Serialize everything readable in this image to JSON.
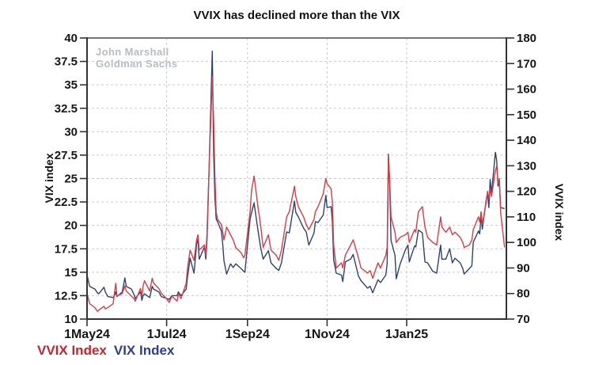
{
  "chart_data": {
    "type": "line",
    "title": "VVIX has declined more than the VIX",
    "watermark": {
      "line1": "John Marshall",
      "line2": "Goldman Sachs"
    },
    "grid": true,
    "left_axis": {
      "label": "VIX index",
      "min": 10,
      "max": 40,
      "tick_step": 2.5,
      "ticks": [
        10,
        12.5,
        15,
        17.5,
        20,
        22.5,
        25,
        27.5,
        30,
        32.5,
        35,
        37.5,
        40
      ]
    },
    "right_axis": {
      "label": "VVIX index",
      "min": 70,
      "max": 180,
      "tick_step": 10,
      "ticks": [
        70,
        80,
        90,
        100,
        110,
        120,
        130,
        140,
        150,
        160,
        170,
        180
      ]
    },
    "x_axis": {
      "tick_labels": [
        "1May24",
        "1Jul24",
        "1Sep24",
        "1Nov24",
        "1Jan25"
      ],
      "tick_dates": [
        "2024-05-01",
        "2024-07-01",
        "2024-09-01",
        "2024-11-01",
        "2025-01-01"
      ],
      "range_start": "2024-05-01",
      "range_end": "2025-03-17"
    },
    "legend": [
      {
        "label": "VVIX Index",
        "color": "#c4242e",
        "axis": "right"
      },
      {
        "label": "VIX Index",
        "color": "#2e3f8c",
        "axis": "left"
      }
    ],
    "colors": {
      "vix_line": "#2e4270",
      "vvix_line": "#d13f48",
      "grid": "#c9c9c9",
      "axis": "#333333",
      "axis_top": "#747474",
      "tick_label": "#161616"
    },
    "columns": [
      "date",
      "vix_left_axis",
      "vvix_right_axis"
    ],
    "points": [
      [
        "2024-05-01",
        14.7,
        80
      ],
      [
        "2024-05-03",
        13.5,
        76
      ],
      [
        "2024-05-07",
        13.2,
        74.5
      ],
      [
        "2024-05-09",
        12.8,
        73
      ],
      [
        "2024-05-10",
        12.7,
        73.5
      ],
      [
        "2024-05-14",
        13.4,
        75
      ],
      [
        "2024-05-15",
        12.9,
        74
      ],
      [
        "2024-05-17",
        12.4,
        74.5
      ],
      [
        "2024-05-21",
        12.3,
        76
      ],
      [
        "2024-05-22",
        12.5,
        80
      ],
      [
        "2024-05-23",
        12.9,
        84
      ],
      [
        "2024-05-24",
        12.4,
        79
      ],
      [
        "2024-05-28",
        12.9,
        80
      ],
      [
        "2024-05-30",
        14.4,
        83
      ],
      [
        "2024-05-31",
        13.5,
        81
      ],
      [
        "2024-06-04",
        13.2,
        79
      ],
      [
        "2024-06-06",
        12.6,
        78
      ],
      [
        "2024-06-07",
        12.2,
        77
      ],
      [
        "2024-06-11",
        12.9,
        82
      ],
      [
        "2024-06-12",
        12.0,
        79
      ],
      [
        "2024-06-13",
        12.5,
        83
      ],
      [
        "2024-06-14",
        12.7,
        85
      ],
      [
        "2024-06-18",
        12.3,
        81
      ],
      [
        "2024-06-20",
        13.5,
        86
      ],
      [
        "2024-06-21",
        13.2,
        84
      ],
      [
        "2024-06-25",
        12.9,
        82
      ],
      [
        "2024-06-27",
        12.4,
        80
      ],
      [
        "2024-07-01",
        12.2,
        78
      ],
      [
        "2024-07-03",
        12.1,
        76.5
      ],
      [
        "2024-07-05",
        12.5,
        79
      ],
      [
        "2024-07-09",
        12.5,
        77
      ],
      [
        "2024-07-10",
        12.9,
        80
      ],
      [
        "2024-07-12",
        12.5,
        78
      ],
      [
        "2024-07-16",
        13.2,
        84
      ],
      [
        "2024-07-17",
        14.5,
        90
      ],
      [
        "2024-07-19",
        16.5,
        97
      ],
      [
        "2024-07-22",
        14.9,
        93
      ],
      [
        "2024-07-24",
        18.0,
        101
      ],
      [
        "2024-07-25",
        18.5,
        103
      ],
      [
        "2024-07-26",
        16.4,
        97
      ],
      [
        "2024-07-30",
        17.7,
        99
      ],
      [
        "2024-07-31",
        16.4,
        95
      ],
      [
        "2024-08-01",
        18.6,
        104
      ],
      [
        "2024-08-02",
        23.4,
        121
      ],
      [
        "2024-08-05",
        38.6,
        165
      ],
      [
        "2024-08-06",
        27.7,
        148
      ],
      [
        "2024-08-07",
        23.0,
        126
      ],
      [
        "2024-08-08",
        20.7,
        112
      ],
      [
        "2024-08-09",
        20.4,
        109
      ],
      [
        "2024-08-12",
        19.4,
        107
      ],
      [
        "2024-08-13",
        18.0,
        104
      ],
      [
        "2024-08-14",
        16.2,
        101
      ],
      [
        "2024-08-16",
        14.8,
        106
      ],
      [
        "2024-08-19",
        15.9,
        103
      ],
      [
        "2024-08-21",
        15.5,
        101
      ],
      [
        "2024-08-23",
        15.9,
        98
      ],
      [
        "2024-08-27",
        15.4,
        96
      ],
      [
        "2024-08-29",
        15.1,
        94
      ],
      [
        "2024-08-30",
        15.0,
        95
      ],
      [
        "2024-09-03",
        20.7,
        112
      ],
      [
        "2024-09-04",
        21.3,
        120
      ],
      [
        "2024-09-06",
        22.4,
        126
      ],
      [
        "2024-09-09",
        19.5,
        114
      ],
      [
        "2024-09-11",
        17.7,
        107
      ],
      [
        "2024-09-13",
        16.4,
        98
      ],
      [
        "2024-09-17",
        17.3,
        103
      ],
      [
        "2024-09-19",
        16.0,
        97
      ],
      [
        "2024-09-23",
        15.4,
        95
      ],
      [
        "2024-09-25",
        15.2,
        93
      ],
      [
        "2024-09-27",
        16.0,
        97
      ],
      [
        "2024-10-01",
        19.3,
        110
      ],
      [
        "2024-10-03",
        19.2,
        112
      ],
      [
        "2024-10-07",
        22.6,
        122
      ],
      [
        "2024-10-08",
        21.4,
        118
      ],
      [
        "2024-10-10",
        20.9,
        114
      ],
      [
        "2024-10-14",
        19.7,
        110
      ],
      [
        "2024-10-16",
        19.3,
        107
      ],
      [
        "2024-10-18",
        17.9,
        105
      ],
      [
        "2024-10-22",
        19.2,
        109
      ],
      [
        "2024-10-23",
        20.4,
        112
      ],
      [
        "2024-10-25",
        20.3,
        114
      ],
      [
        "2024-10-29",
        21.1,
        119
      ],
      [
        "2024-10-31",
        23.2,
        125
      ],
      [
        "2024-11-01",
        21.9,
        123
      ],
      [
        "2024-11-04",
        22.0,
        121
      ],
      [
        "2024-11-05",
        20.5,
        116
      ],
      [
        "2024-11-06",
        16.3,
        99
      ],
      [
        "2024-11-08",
        14.9,
        90
      ],
      [
        "2024-11-12",
        14.7,
        92
      ],
      [
        "2024-11-13",
        14.0,
        90
      ],
      [
        "2024-11-15",
        16.1,
        95
      ],
      [
        "2024-11-19",
        16.4,
        99
      ],
      [
        "2024-11-21",
        16.9,
        101
      ],
      [
        "2024-11-25",
        14.6,
        94
      ],
      [
        "2024-11-27",
        14.1,
        90
      ],
      [
        "2024-12-02",
        13.3,
        88
      ],
      [
        "2024-12-04",
        13.5,
        89
      ],
      [
        "2024-12-06",
        12.8,
        86
      ],
      [
        "2024-12-10",
        14.2,
        92
      ],
      [
        "2024-12-12",
        13.9,
        90
      ],
      [
        "2024-12-16",
        14.7,
        95
      ],
      [
        "2024-12-17",
        15.9,
        98
      ],
      [
        "2024-12-18",
        27.6,
        134
      ],
      [
        "2024-12-19",
        24.1,
        124
      ],
      [
        "2024-12-20",
        18.4,
        110
      ],
      [
        "2024-12-23",
        16.8,
        104
      ],
      [
        "2024-12-24",
        14.3,
        100
      ],
      [
        "2024-12-27",
        15.9,
        102
      ],
      [
        "2024-12-31",
        17.4,
        103
      ],
      [
        "2025-01-02",
        17.9,
        104
      ],
      [
        "2025-01-03",
        16.1,
        100
      ],
      [
        "2025-01-07",
        17.8,
        105
      ],
      [
        "2025-01-08",
        17.7,
        104
      ],
      [
        "2025-01-10",
        19.5,
        112
      ],
      [
        "2025-01-13",
        19.2,
        114
      ],
      [
        "2025-01-15",
        16.1,
        106
      ],
      [
        "2025-01-17",
        16.0,
        102
      ],
      [
        "2025-01-21",
        15.1,
        100
      ],
      [
        "2025-01-24",
        14.9,
        99
      ],
      [
        "2025-01-27",
        17.9,
        110
      ],
      [
        "2025-01-28",
        16.4,
        106
      ],
      [
        "2025-01-31",
        16.4,
        104
      ],
      [
        "2025-02-03",
        17.5,
        106
      ],
      [
        "2025-02-05",
        16.0,
        103
      ],
      [
        "2025-02-07",
        16.5,
        104
      ],
      [
        "2025-02-11",
        16.0,
        102
      ],
      [
        "2025-02-13",
        15.4,
        100
      ],
      [
        "2025-02-14",
        14.8,
        98
      ],
      [
        "2025-02-18",
        15.4,
        99
      ],
      [
        "2025-02-20",
        15.7,
        101
      ],
      [
        "2025-02-21",
        18.2,
        105
      ],
      [
        "2025-02-25",
        19.4,
        110
      ],
      [
        "2025-02-26",
        19.1,
        108
      ],
      [
        "2025-02-27",
        21.1,
        112
      ],
      [
        "2025-02-28",
        19.6,
        107
      ],
      [
        "2025-03-03",
        22.8,
        116
      ],
      [
        "2025-03-04",
        23.5,
        120
      ],
      [
        "2025-03-05",
        21.9,
        117
      ],
      [
        "2025-03-06",
        24.9,
        121
      ],
      [
        "2025-03-07",
        23.4,
        118
      ],
      [
        "2025-03-10",
        27.8,
        128
      ],
      [
        "2025-03-11",
        26.9,
        130
      ],
      [
        "2025-03-12",
        24.2,
        123
      ],
      [
        "2025-03-13",
        24.7,
        125
      ],
      [
        "2025-03-14",
        21.9,
        112
      ],
      [
        "2025-03-17",
        21.8,
        98
      ]
    ]
  }
}
